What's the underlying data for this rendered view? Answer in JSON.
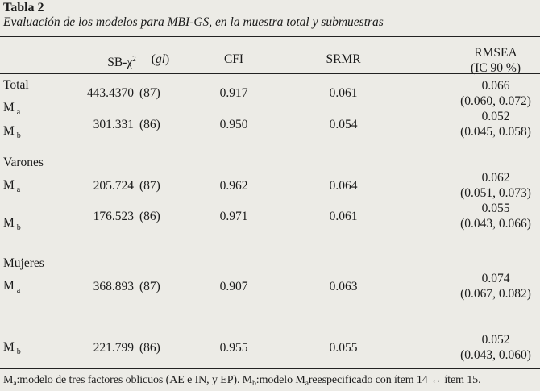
{
  "title": "Tabla 2",
  "subtitle": "Evaluación de los modelos para MBI-GS, en la muestra total y submuestras",
  "headers": {
    "sbchi_base": "SB-χ",
    "sbchi_sup": "2",
    "gl": "gl",
    "cfi": "CFI",
    "srmr": "SRMR",
    "rmsea_line1": "RMSEA",
    "rmsea_line2": "(IC 90 %)"
  },
  "groups": [
    {
      "name": "Total",
      "rows": [
        {
          "model": "M",
          "sub": "a",
          "chi": "443.4370",
          "gl": "(87)",
          "cfi": "0.917",
          "srmr": "0.061",
          "rmsea": "0.066",
          "ci": "(0.060, 0.072)"
        },
        {
          "model": "M",
          "sub": "b",
          "chi": "301.331",
          "gl": "(86)",
          "cfi": "0.950",
          "srmr": "0.054",
          "rmsea": "0.052",
          "ci": "(0.045, 0.058)"
        }
      ]
    },
    {
      "name": "Varones",
      "rows": [
        {
          "model": "M",
          "sub": "a",
          "chi": "205.724",
          "gl": "(87)",
          "cfi": "0.962",
          "srmr": "0.064",
          "rmsea": "0.062",
          "ci": "(0.051, 0.073)"
        },
        {
          "model": "M",
          "sub": "b",
          "chi": "176.523",
          "gl": "(86)",
          "cfi": "0.971",
          "srmr": "0.061",
          "rmsea": "0.055",
          "ci": "(0.043, 0.066)"
        }
      ]
    },
    {
      "name": "Mujeres",
      "rows": [
        {
          "model": "M",
          "sub": "a",
          "chi": "368.893",
          "gl": "(87)",
          "cfi": "0.907",
          "srmr": "0.063",
          "rmsea": "0.074",
          "ci": "(0.067, 0.082)"
        },
        {
          "model": "M",
          "sub": "b",
          "chi": "221.799",
          "gl": "(86)",
          "cfi": "0.955",
          "srmr": "0.055",
          "rmsea": "0.052",
          "ci": "(0.043,  0.060)"
        }
      ]
    }
  ],
  "note": {
    "m1": "M",
    "s1": "a",
    "t1": ":modelo de tres factores oblicuos (AE e IN, y EP). ",
    "m2": "M",
    "s2": "b",
    "t2": ":modelo  ",
    "m3": "M",
    "s3": "a",
    "t3": "reespecificado con ítem 14 ↔ ítem 15."
  }
}
